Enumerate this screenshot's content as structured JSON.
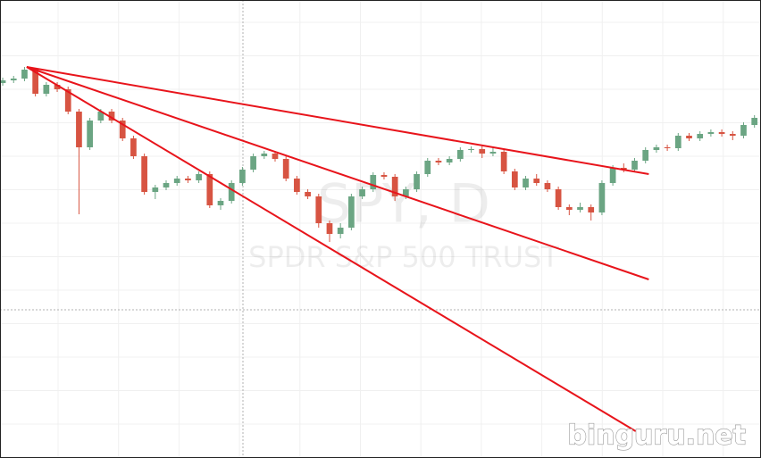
{
  "chart_data": {
    "type": "candlestick",
    "title": "SPY, D",
    "subtitle": "SPDR S&P 500 TRUST",
    "watermark": "binguru.net",
    "xlim": [
      -0.25,
      69.6
    ],
    "ylim": [
      0,
      513
    ],
    "grid": true,
    "up_color": "#6ba583",
    "down_color": "#d75442",
    "open": [
      420,
      423,
      425,
      435,
      408,
      418,
      413,
      388,
      348,
      378,
      388,
      378,
      358,
      338,
      298,
      303,
      308,
      313,
      311,
      318,
      283,
      288,
      308,
      323,
      338,
      341,
      335,
      313,
      298,
      293,
      263,
      251,
      258,
      293,
      301,
      317,
      315,
      293,
      301,
      318,
      333,
      331,
      335,
      345,
      346,
      341,
      343,
      321,
      303,
      313,
      308,
      301,
      281,
      278,
      281,
      275,
      308,
      325,
      323,
      333,
      345,
      348,
      347,
      361,
      358,
      363,
      365,
      363,
      361,
      373
    ],
    "high": [
      426,
      428,
      438,
      437,
      421,
      421,
      416,
      391,
      381,
      391,
      391,
      381,
      361,
      341,
      306,
      311,
      316,
      316,
      321,
      321,
      291,
      311,
      326,
      341,
      344,
      344,
      338,
      316,
      301,
      296,
      266,
      263,
      296,
      304,
      320,
      320,
      318,
      304,
      321,
      336,
      336,
      338,
      348,
      349,
      349,
      348,
      346,
      324,
      316,
      318,
      311,
      304,
      284,
      286,
      284,
      311,
      328,
      330,
      336,
      348,
      351,
      351,
      364,
      364,
      366,
      368,
      368,
      366,
      376,
      384
    ],
    "low": [
      417,
      420,
      422,
      405,
      405,
      410,
      385,
      273,
      345,
      375,
      375,
      355,
      335,
      295,
      290,
      300,
      305,
      308,
      308,
      280,
      278,
      285,
      305,
      320,
      335,
      332,
      310,
      295,
      290,
      258,
      242,
      246,
      255,
      290,
      298,
      312,
      288,
      290,
      298,
      315,
      328,
      328,
      332,
      342,
      336,
      338,
      318,
      300,
      300,
      305,
      298,
      278,
      272,
      275,
      266,
      272,
      305,
      320,
      320,
      330,
      342,
      344,
      344,
      355,
      355,
      360,
      360,
      356,
      358,
      370
    ],
    "close": [
      423,
      425,
      435,
      408,
      418,
      413,
      388,
      348,
      378,
      388,
      378,
      358,
      338,
      298,
      303,
      308,
      313,
      311,
      318,
      283,
      288,
      308,
      323,
      338,
      341,
      335,
      313,
      298,
      293,
      263,
      251,
      258,
      293,
      301,
      317,
      315,
      293,
      301,
      318,
      333,
      331,
      335,
      345,
      346,
      341,
      343,
      321,
      303,
      313,
      308,
      301,
      281,
      278,
      281,
      275,
      308,
      325,
      323,
      333,
      345,
      348,
      347,
      361,
      358,
      363,
      365,
      363,
      361,
      373,
      381
    ],
    "lines": [
      {
        "color": "#e8141b",
        "x": [
          2.2,
          59.3
        ],
        "y": [
          438,
          318
        ]
      },
      {
        "color": "#e8141b",
        "x": [
          2.2,
          59.3
        ],
        "y": [
          438,
          200
        ]
      },
      {
        "color": "#e8141b",
        "x": [
          2.2,
          58.1
        ],
        "y": [
          438,
          30
        ]
      }
    ]
  }
}
